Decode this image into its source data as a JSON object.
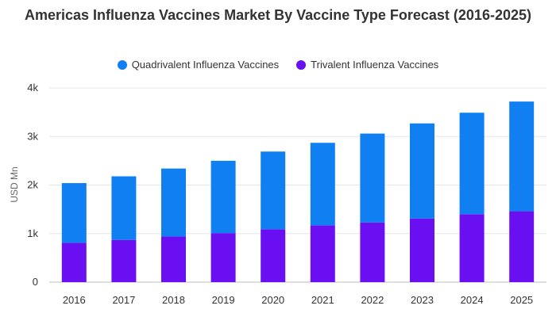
{
  "chart_data": {
    "type": "bar",
    "stacked": true,
    "title": "Americas Influenza Vaccines Market By Vaccine Type Forecast (2016-2025)",
    "ylabel": "USD Mn",
    "xlabel": "",
    "categories": [
      "2016",
      "2017",
      "2018",
      "2019",
      "2020",
      "2021",
      "2022",
      "2023",
      "2024",
      "2025"
    ],
    "series": [
      {
        "name": "Trivalent Influenza Vaccines",
        "color": "#6a0ff2",
        "values": [
          810,
          870,
          940,
          1010,
          1090,
          1170,
          1230,
          1310,
          1400,
          1460
        ]
      },
      {
        "name": "Quadrivalent Influenza Vaccines",
        "color": "#0f7ff2",
        "values": [
          1230,
          1310,
          1400,
          1490,
          1600,
          1700,
          1830,
          1960,
          2090,
          2260
        ]
      }
    ],
    "legend_order": [
      1,
      0
    ],
    "ylim": [
      0,
      4000
    ],
    "yticks": [
      0,
      1000,
      2000,
      3000,
      4000
    ],
    "ytick_labels": [
      "0",
      "1k",
      "2k",
      "3k",
      "4k"
    ],
    "grid": true,
    "legend_position": "top-center"
  }
}
